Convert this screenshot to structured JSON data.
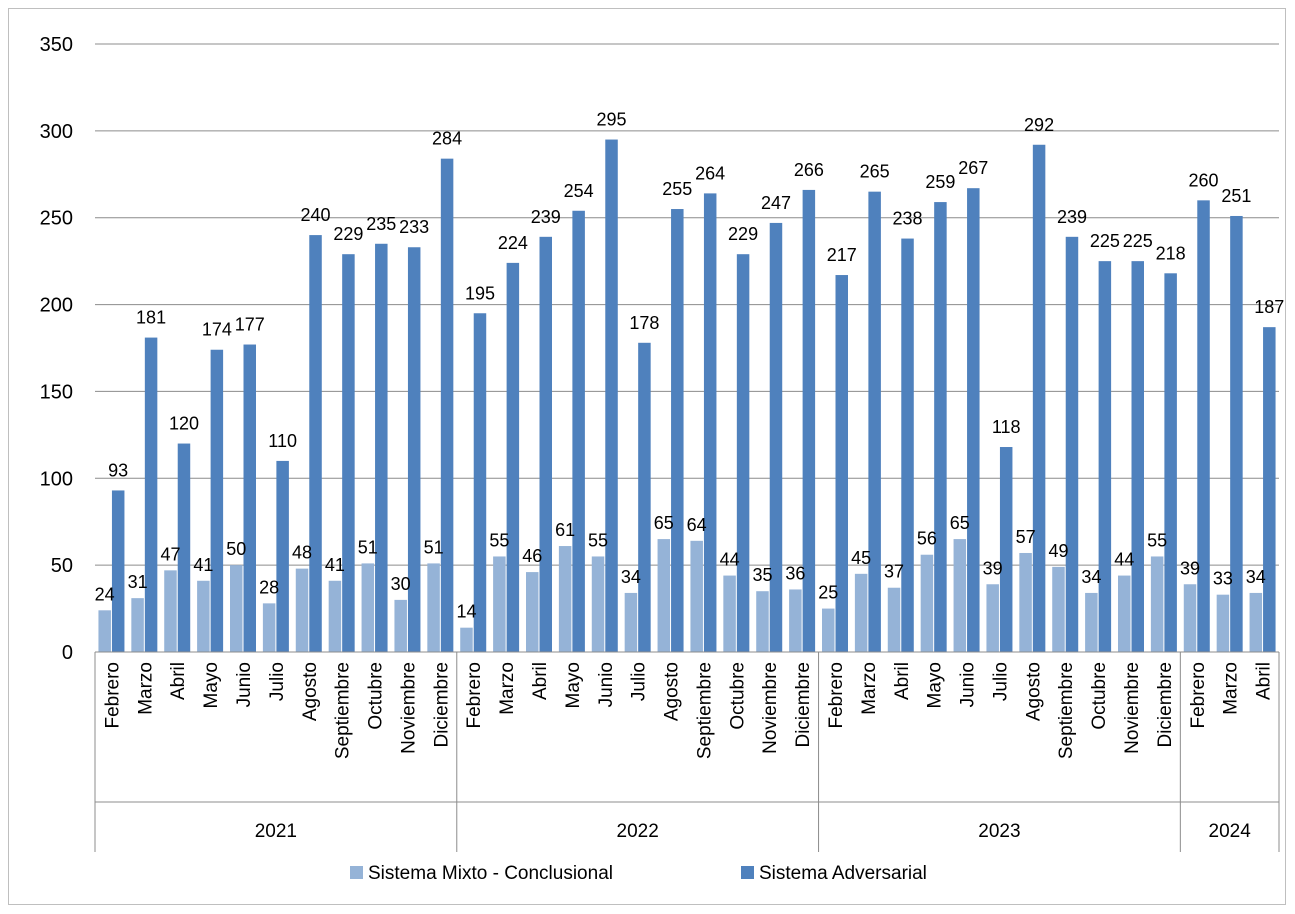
{
  "chart_data": {
    "type": "bar",
    "title": "",
    "xlabel": "",
    "ylabel": "",
    "ylim": [
      0,
      350
    ],
    "yticks": [
      0,
      50,
      100,
      150,
      200,
      250,
      300,
      350
    ],
    "grid": true,
    "legend_position": "bottom",
    "groups": [
      {
        "label": "2021",
        "categories": [
          "Febrero",
          "Marzo",
          "Abril",
          "Mayo",
          "Junio",
          "Julio",
          "Agosto",
          "Septiembre",
          "Octubre",
          "Noviembre",
          "Diciembre"
        ]
      },
      {
        "label": "2022",
        "categories": [
          "Febrero",
          "Marzo",
          "Abril",
          "Mayo",
          "Junio",
          "Julio",
          "Agosto",
          "Septiembre",
          "Octubre",
          "Noviembre",
          "Diciembre"
        ]
      },
      {
        "label": "2023",
        "categories": [
          "Febrero",
          "Marzo",
          "Abril",
          "Mayo",
          "Junio",
          "Julio",
          "Agosto",
          "Septiembre",
          "Octubre",
          "Noviembre",
          "Diciembre"
        ]
      },
      {
        "label": "2024",
        "categories": [
          "Febrero",
          "Marzo",
          "Abril"
        ]
      }
    ],
    "series": [
      {
        "name": "Sistema Mixto - Conclusional",
        "color": "#95b3d7",
        "values": [
          24,
          31,
          47,
          41,
          50,
          28,
          48,
          41,
          51,
          30,
          51,
          14,
          55,
          46,
          61,
          55,
          34,
          65,
          64,
          44,
          35,
          36,
          25,
          45,
          37,
          56,
          65,
          39,
          57,
          49,
          34,
          44,
          55,
          39,
          33,
          34
        ]
      },
      {
        "name": "Sistema Adversarial",
        "color": "#4f81bd",
        "values": [
          93,
          181,
          120,
          174,
          177,
          110,
          240,
          229,
          235,
          233,
          284,
          195,
          224,
          239,
          254,
          295,
          178,
          255,
          264,
          229,
          247,
          266,
          217,
          265,
          238,
          259,
          267,
          118,
          292,
          239,
          225,
          225,
          218,
          260,
          251,
          187
        ]
      }
    ]
  }
}
